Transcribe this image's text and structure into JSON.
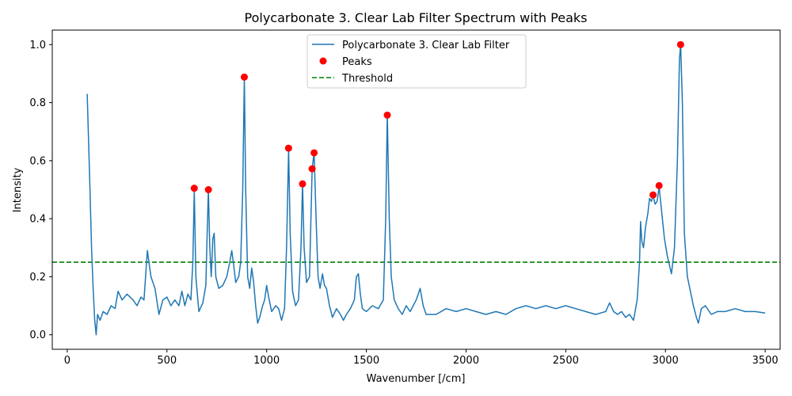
{
  "chart_data": {
    "type": "line",
    "title": "Polycarbonate 3. Clear Lab Filter Spectrum with Peaks",
    "xlabel": "Wavenumber [/cm]",
    "ylabel": "Intensity",
    "xlim": [
      -75,
      3575
    ],
    "ylim": [
      -0.05,
      1.05
    ],
    "xticks": [
      0,
      500,
      1000,
      1500,
      2000,
      2500,
      3000,
      3500
    ],
    "yticks": [
      0.0,
      0.2,
      0.4,
      0.6,
      0.8,
      1.0
    ],
    "xtick_labels": [
      "0",
      "500",
      "1000",
      "1500",
      "2000",
      "2500",
      "3000",
      "3500"
    ],
    "ytick_labels": [
      "0.0",
      "0.2",
      "0.4",
      "0.6",
      "0.8",
      "1.0"
    ],
    "grid": false,
    "legend_position": "top-center",
    "threshold": 0.25,
    "series": [
      {
        "name": "Polycarbonate 3. Clear Lab Filter",
        "color": "#1f77b4",
        "points": [
          [
            100,
            0.83
          ],
          [
            112,
            0.55
          ],
          [
            122,
            0.3
          ],
          [
            130,
            0.16
          ],
          [
            138,
            0.05
          ],
          [
            145,
            0.0
          ],
          [
            152,
            0.07
          ],
          [
            165,
            0.05
          ],
          [
            180,
            0.08
          ],
          [
            200,
            0.07
          ],
          [
            220,
            0.1
          ],
          [
            240,
            0.09
          ],
          [
            255,
            0.15
          ],
          [
            275,
            0.12
          ],
          [
            300,
            0.14
          ],
          [
            330,
            0.12
          ],
          [
            350,
            0.1
          ],
          [
            370,
            0.13
          ],
          [
            385,
            0.12
          ],
          [
            395,
            0.22
          ],
          [
            402,
            0.29
          ],
          [
            410,
            0.25
          ],
          [
            420,
            0.2
          ],
          [
            440,
            0.16
          ],
          [
            460,
            0.07
          ],
          [
            480,
            0.12
          ],
          [
            500,
            0.13
          ],
          [
            520,
            0.1
          ],
          [
            540,
            0.12
          ],
          [
            560,
            0.1
          ],
          [
            575,
            0.15
          ],
          [
            590,
            0.1
          ],
          [
            605,
            0.14
          ],
          [
            620,
            0.12
          ],
          [
            630,
            0.25
          ],
          [
            637,
            0.5
          ],
          [
            645,
            0.2
          ],
          [
            660,
            0.08
          ],
          [
            680,
            0.11
          ],
          [
            695,
            0.17
          ],
          [
            700,
            0.3
          ],
          [
            708,
            0.5
          ],
          [
            715,
            0.3
          ],
          [
            722,
            0.2
          ],
          [
            730,
            0.33
          ],
          [
            737,
            0.35
          ],
          [
            745,
            0.2
          ],
          [
            760,
            0.16
          ],
          [
            780,
            0.17
          ],
          [
            800,
            0.2
          ],
          [
            815,
            0.25
          ],
          [
            825,
            0.29
          ],
          [
            835,
            0.24
          ],
          [
            845,
            0.18
          ],
          [
            860,
            0.2
          ],
          [
            870,
            0.25
          ],
          [
            880,
            0.5
          ],
          [
            888,
            0.89
          ],
          [
            895,
            0.5
          ],
          [
            905,
            0.2
          ],
          [
            915,
            0.16
          ],
          [
            925,
            0.23
          ],
          [
            935,
            0.18
          ],
          [
            945,
            0.1
          ],
          [
            955,
            0.04
          ],
          [
            965,
            0.06
          ],
          [
            980,
            0.1
          ],
          [
            990,
            0.12
          ],
          [
            1000,
            0.17
          ],
          [
            1010,
            0.13
          ],
          [
            1025,
            0.08
          ],
          [
            1045,
            0.1
          ],
          [
            1060,
            0.09
          ],
          [
            1075,
            0.05
          ],
          [
            1090,
            0.09
          ],
          [
            1100,
            0.3
          ],
          [
            1110,
            0.64
          ],
          [
            1118,
            0.35
          ],
          [
            1130,
            0.15
          ],
          [
            1145,
            0.1
          ],
          [
            1160,
            0.12
          ],
          [
            1172,
            0.3
          ],
          [
            1180,
            0.52
          ],
          [
            1188,
            0.3
          ],
          [
            1200,
            0.18
          ],
          [
            1215,
            0.2
          ],
          [
            1228,
            0.57
          ],
          [
            1238,
            0.63
          ],
          [
            1248,
            0.4
          ],
          [
            1258,
            0.2
          ],
          [
            1268,
            0.16
          ],
          [
            1280,
            0.21
          ],
          [
            1290,
            0.17
          ],
          [
            1300,
            0.16
          ],
          [
            1315,
            0.1
          ],
          [
            1330,
            0.06
          ],
          [
            1350,
            0.09
          ],
          [
            1370,
            0.07
          ],
          [
            1385,
            0.05
          ],
          [
            1400,
            0.07
          ],
          [
            1420,
            0.09
          ],
          [
            1440,
            0.12
          ],
          [
            1450,
            0.2
          ],
          [
            1460,
            0.21
          ],
          [
            1470,
            0.14
          ],
          [
            1480,
            0.09
          ],
          [
            1500,
            0.08
          ],
          [
            1530,
            0.1
          ],
          [
            1560,
            0.09
          ],
          [
            1585,
            0.12
          ],
          [
            1597,
            0.4
          ],
          [
            1605,
            0.76
          ],
          [
            1615,
            0.4
          ],
          [
            1625,
            0.2
          ],
          [
            1640,
            0.12
          ],
          [
            1660,
            0.09
          ],
          [
            1680,
            0.07
          ],
          [
            1700,
            0.1
          ],
          [
            1720,
            0.08
          ],
          [
            1750,
            0.12
          ],
          [
            1770,
            0.16
          ],
          [
            1785,
            0.1
          ],
          [
            1800,
            0.07
          ],
          [
            1850,
            0.07
          ],
          [
            1900,
            0.09
          ],
          [
            1950,
            0.08
          ],
          [
            2000,
            0.09
          ],
          [
            2050,
            0.08
          ],
          [
            2100,
            0.07
          ],
          [
            2150,
            0.08
          ],
          [
            2200,
            0.07
          ],
          [
            2250,
            0.09
          ],
          [
            2300,
            0.1
          ],
          [
            2350,
            0.09
          ],
          [
            2400,
            0.1
          ],
          [
            2450,
            0.09
          ],
          [
            2500,
            0.1
          ],
          [
            2550,
            0.09
          ],
          [
            2600,
            0.08
          ],
          [
            2650,
            0.07
          ],
          [
            2700,
            0.08
          ],
          [
            2720,
            0.11
          ],
          [
            2740,
            0.08
          ],
          [
            2760,
            0.07
          ],
          [
            2780,
            0.08
          ],
          [
            2800,
            0.06
          ],
          [
            2820,
            0.07
          ],
          [
            2840,
            0.05
          ],
          [
            2858,
            0.12
          ],
          [
            2870,
            0.25
          ],
          [
            2875,
            0.39
          ],
          [
            2882,
            0.32
          ],
          [
            2890,
            0.3
          ],
          [
            2900,
            0.37
          ],
          [
            2912,
            0.42
          ],
          [
            2920,
            0.47
          ],
          [
            2930,
            0.46
          ],
          [
            2938,
            0.48
          ],
          [
            2948,
            0.45
          ],
          [
            2958,
            0.46
          ],
          [
            2968,
            0.51
          ],
          [
            2980,
            0.43
          ],
          [
            2995,
            0.33
          ],
          [
            3010,
            0.27
          ],
          [
            3030,
            0.21
          ],
          [
            3045,
            0.3
          ],
          [
            3060,
            0.6
          ],
          [
            3070,
            0.95
          ],
          [
            3076,
            1.0
          ],
          [
            3085,
            0.8
          ],
          [
            3095,
            0.35
          ],
          [
            3110,
            0.2
          ],
          [
            3125,
            0.15
          ],
          [
            3140,
            0.1
          ],
          [
            3155,
            0.06
          ],
          [
            3165,
            0.04
          ],
          [
            3180,
            0.09
          ],
          [
            3200,
            0.1
          ],
          [
            3230,
            0.07
          ],
          [
            3260,
            0.08
          ],
          [
            3300,
            0.08
          ],
          [
            3350,
            0.09
          ],
          [
            3400,
            0.08
          ],
          [
            3450,
            0.08
          ],
          [
            3500,
            0.075
          ]
        ]
      }
    ],
    "peaks": {
      "name": "Peaks",
      "color": "#ff0000",
      "points": [
        [
          637,
          0.505
        ],
        [
          708,
          0.5
        ],
        [
          888,
          0.888
        ],
        [
          1110,
          0.643
        ],
        [
          1180,
          0.52
        ],
        [
          1228,
          0.572
        ],
        [
          1238,
          0.627
        ],
        [
          1605,
          0.757
        ],
        [
          2938,
          0.482
        ],
        [
          2968,
          0.514
        ],
        [
          3076,
          1.0
        ]
      ]
    },
    "threshold_line": {
      "name": "Threshold",
      "color": "#008000",
      "value": 0.25
    }
  }
}
